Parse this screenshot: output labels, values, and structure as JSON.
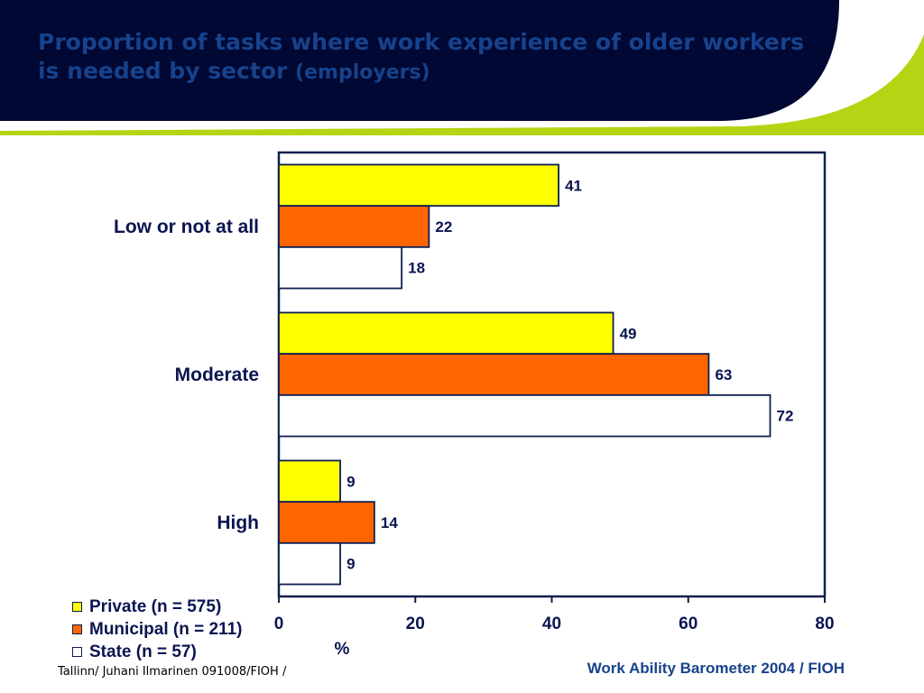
{
  "slide": {
    "title_main": "Proportion of tasks where work experience of older workers is needed by sector",
    "title_sub": "(employers)",
    "footer_left": "Tallinn/ Juhani Ilmarinen 091008/FIOH /",
    "footer_right": "Work Ability Barometer 2004 / FIOH",
    "colors": {
      "header_navy": "#000833",
      "header_green": "#b5d514",
      "title_blue": "#17428c"
    }
  },
  "chart_data": {
    "type": "bar",
    "orientation": "horizontal",
    "categories": [
      "Low or not at all",
      "Moderate",
      "High"
    ],
    "series": [
      {
        "name": "Private (n = 575)",
        "values": [
          41,
          49,
          9
        ],
        "color": "#ffff00"
      },
      {
        "name": "Municipal (n = 211)",
        "values": [
          22,
          63,
          14
        ],
        "color": "#ff6600"
      },
      {
        "name": "State (n = 57)",
        "values": [
          18,
          72,
          9
        ],
        "color": "#ffffff"
      }
    ],
    "xlabel": "%",
    "xlim": [
      0,
      80
    ],
    "xticks": [
      0,
      20,
      40,
      60,
      80
    ],
    "data_labels": true,
    "grid": false,
    "legend_position": "bottom-left"
  }
}
